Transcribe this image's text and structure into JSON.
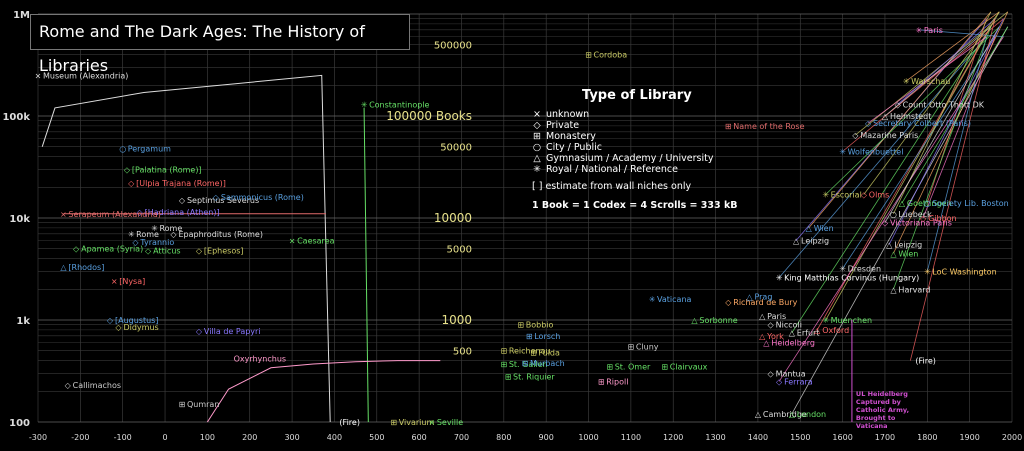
{
  "chart_data": {
    "type": "line",
    "title": "Rome and The Dark Ages: The History of Libraries",
    "xlim": [
      -300,
      2000
    ],
    "ylim": [
      100,
      1000000
    ],
    "yscale": "log",
    "grid": true,
    "x_ticks": [
      "-300",
      "-200",
      "-100",
      "0",
      "100",
      "200",
      "300",
      "400",
      "500",
      "600",
      "700",
      "800",
      "900",
      "1000",
      "1100",
      "1200",
      "1300",
      "1400",
      "1500",
      "1600",
      "1700",
      "1800",
      "1900",
      "2000"
    ],
    "y_ticks": [
      {
        "value": 100,
        "label": "100"
      },
      {
        "value": 1000,
        "label": "1k"
      },
      {
        "value": 10000,
        "label": "10k"
      },
      {
        "value": 100000,
        "label": "100k"
      },
      {
        "value": 1000000,
        "label": "1M"
      }
    ],
    "inner_labels": [
      {
        "value": 500000,
        "label": "500000"
      },
      {
        "value": 100000,
        "label": "100000 Books"
      },
      {
        "value": 50000,
        "label": "50000"
      },
      {
        "value": 10000,
        "label": "10000"
      },
      {
        "value": 5000,
        "label": "5000"
      },
      {
        "value": 1000,
        "label": "1000"
      },
      {
        "value": 500,
        "label": "500"
      }
    ],
    "legend": {
      "title": "Type of Library",
      "items": [
        {
          "symbol": "×",
          "label": "unknown"
        },
        {
          "symbol": "◇",
          "label": "Private"
        },
        {
          "symbol": "⊞",
          "label": "Monastery"
        },
        {
          "symbol": "○",
          "label": "City / Public"
        },
        {
          "symbol": "△",
          "label": "Gymnasium / Academy / University"
        },
        {
          "symbol": "✳",
          "label": "Royal / National / Reference"
        }
      ],
      "note": "[ ] estimate from wall niches only",
      "scale": "1 Book = 1 Codex = 4 Scrolls = 333 kB"
    },
    "series": [
      {
        "name": "Museum (Alexandria)",
        "color": "#dddddd",
        "points": [
          [
            -290,
            50000
          ],
          [
            -260,
            120000
          ],
          [
            -50,
            170000
          ],
          [
            370,
            250000
          ],
          [
            390,
            100
          ]
        ]
      },
      {
        "name": "Serapeum (Alexandria)",
        "color": "#e06b6b",
        "points": [
          [
            -240,
            11000
          ],
          [
            380,
            11000
          ]
        ]
      },
      {
        "name": "Constantinople",
        "color": "#66e066",
        "points": [
          [
            470,
            120000
          ],
          [
            480,
            100
          ]
        ]
      },
      {
        "name": "Oxyrhynchus",
        "color": "#ff9acb",
        "points": [
          [
            100,
            100
          ],
          [
            150,
            210
          ],
          [
            250,
            340
          ],
          [
            350,
            370
          ],
          [
            450,
            390
          ],
          [
            550,
            400
          ],
          [
            650,
            400
          ]
        ]
      }
    ],
    "annotations": [
      {
        "label": "Museum (Alexandria)",
        "x": -300,
        "y": 250000,
        "color": "#dddddd",
        "marker": "×"
      },
      {
        "label": "Constantinople",
        "x": 470,
        "y": 130000,
        "color": "#66e066",
        "marker": "✳"
      },
      {
        "label": "Cordoba",
        "x": 1000,
        "y": 400000,
        "color": "#cccc66",
        "marker": "⊞"
      },
      {
        "label": "Pergamum",
        "x": -100,
        "y": 48000,
        "color": "#5aa0e0",
        "marker": "○"
      },
      {
        "label": "[Palatina (Rome)]",
        "x": -90,
        "y": 30000,
        "color": "#66e066",
        "marker": "◇"
      },
      {
        "label": "[Ulpia Trajana (Rome)]",
        "x": -80,
        "y": 22000,
        "color": "#ff6666",
        "marker": "◇"
      },
      {
        "label": "Septimus Severus",
        "x": 40,
        "y": 15000,
        "color": "#dddddd",
        "marker": "◇"
      },
      {
        "label": "Sammonicus (Rome)",
        "x": 120,
        "y": 16000,
        "color": "#5aa0e0",
        "marker": "◇"
      },
      {
        "label": "[Hadriana (Athen)]",
        "x": -60,
        "y": 11500,
        "color": "#8a78ff",
        "marker": "◇"
      },
      {
        "label": "Serapeum (Alexandria)",
        "x": -240,
        "y": 11000,
        "color": "#e06b6b",
        "marker": "×"
      },
      {
        "label": "Rome",
        "x": -25,
        "y": 8000,
        "color": "#dddddd",
        "marker": "✳"
      },
      {
        "label": "Rome",
        "x": -80,
        "y": 7000,
        "color": "#dddddd",
        "marker": "✳"
      },
      {
        "label": "Epaphroditus (Rome)",
        "x": 20,
        "y": 7000,
        "color": "#dddddd",
        "marker": "◇"
      },
      {
        "label": "Tyrannio",
        "x": -70,
        "y": 5800,
        "color": "#5aa0e0",
        "marker": "◇"
      },
      {
        "label": "Caesarea",
        "x": 300,
        "y": 6000,
        "color": "#66e066",
        "marker": "×"
      },
      {
        "label": "Apamea (Syria)",
        "x": -210,
        "y": 5000,
        "color": "#66e066",
        "marker": "◇"
      },
      {
        "label": "Atticus",
        "x": -40,
        "y": 4800,
        "color": "#66e066",
        "marker": "◇"
      },
      {
        "label": "[Ephesos]",
        "x": 80,
        "y": 4800,
        "color": "#cccc66",
        "marker": "◇"
      },
      {
        "label": "[Rhodos]",
        "x": -240,
        "y": 3300,
        "color": "#5aa0e0",
        "marker": "△"
      },
      {
        "label": "[Nysa]",
        "x": -120,
        "y": 2400,
        "color": "#ff6666",
        "marker": "×"
      },
      {
        "label": "[Augustus]",
        "x": -130,
        "y": 1000,
        "color": "#5aa0e0",
        "marker": "◇"
      },
      {
        "label": "Didymus",
        "x": -110,
        "y": 850,
        "color": "#cccc66",
        "marker": "◇"
      },
      {
        "label": "Villa de Papyri",
        "x": 80,
        "y": 780,
        "color": "#8a78ff",
        "marker": "◇"
      },
      {
        "label": "Callimachos",
        "x": -230,
        "y": 230,
        "color": "#cccccc",
        "marker": "◇"
      },
      {
        "label": "Qumran",
        "x": 40,
        "y": 150,
        "color": "#cccccc",
        "marker": "⊞"
      },
      {
        "label": "Oxyrhynchus",
        "x": 150,
        "y": 420,
        "color": "#ff9acb",
        "marker": ""
      },
      {
        "label": "(Fire)",
        "x": 400,
        "y": 100,
        "color": "#ffffff",
        "marker": ""
      },
      {
        "label": "Vivarium",
        "x": 540,
        "y": 100,
        "color": "#cccc66",
        "marker": "⊞"
      },
      {
        "label": "Seville",
        "x": 630,
        "y": 100,
        "color": "#66e066",
        "marker": "×"
      },
      {
        "label": "Bobbio",
        "x": 840,
        "y": 900,
        "color": "#cccc66",
        "marker": "⊞"
      },
      {
        "label": "Lorsch",
        "x": 860,
        "y": 700,
        "color": "#5aa0e0",
        "marker": "⊞"
      },
      {
        "label": "Reichenau",
        "x": 800,
        "y": 500,
        "color": "#cccc66",
        "marker": "⊞"
      },
      {
        "label": "Fulda",
        "x": 870,
        "y": 480,
        "color": "#cccc66",
        "marker": "⊞"
      },
      {
        "label": "St. Gallen",
        "x": 800,
        "y": 370,
        "color": "#66e066",
        "marker": "⊞"
      },
      {
        "label": "Murbach",
        "x": 850,
        "y": 380,
        "color": "#5aa0e0",
        "marker": "⊞"
      },
      {
        "label": "St. Riquier",
        "x": 810,
        "y": 280,
        "color": "#66e066",
        "marker": "⊞"
      },
      {
        "label": "St. Omer",
        "x": 1050,
        "y": 350,
        "color": "#66e066",
        "marker": "⊞"
      },
      {
        "label": "Ripoll",
        "x": 1030,
        "y": 250,
        "color": "#ff9acb",
        "marker": "⊞"
      },
      {
        "label": "Cluny",
        "x": 1100,
        "y": 550,
        "color": "#cccccc",
        "marker": "⊞"
      },
      {
        "label": "Clairvaux",
        "x": 1180,
        "y": 350,
        "color": "#66e066",
        "marker": "⊞"
      },
      {
        "label": "Vaticana",
        "x": 1150,
        "y": 1600,
        "color": "#5aa0e0",
        "marker": "✳"
      },
      {
        "label": "Sorbonne",
        "x": 1250,
        "y": 1000,
        "color": "#66e066",
        "marker": "△"
      },
      {
        "label": "Richard de Bury",
        "x": 1330,
        "y": 1500,
        "color": "#ffaa66",
        "marker": "◇"
      },
      {
        "label": "Prag",
        "x": 1380,
        "y": 1700,
        "color": "#5aa0e0",
        "marker": "△"
      },
      {
        "label": "King Matthias Corvinus (Hungary)",
        "x": 1450,
        "y": 2600,
        "color": "#ffffff",
        "marker": "✳"
      },
      {
        "label": "Name of the Rose",
        "x": 1330,
        "y": 80000,
        "color": "#e06b6b",
        "marker": "⊞"
      },
      {
        "label": "Paris",
        "x": 1410,
        "y": 1100,
        "color": "#dddddd",
        "marker": "△"
      },
      {
        "label": "Niccoli",
        "x": 1430,
        "y": 900,
        "color": "#dddddd",
        "marker": "◇"
      },
      {
        "label": "York",
        "x": 1410,
        "y": 700,
        "color": "#ff6666",
        "marker": "△"
      },
      {
        "label": "Heidelberg",
        "x": 1420,
        "y": 600,
        "color": "#ff77cc",
        "marker": "△"
      },
      {
        "label": "Erfurt",
        "x": 1480,
        "y": 750,
        "color": "#dddddd",
        "marker": "△"
      },
      {
        "label": "Oxford",
        "x": 1540,
        "y": 800,
        "color": "#ff6666",
        "marker": "△"
      },
      {
        "label": "Muenchen",
        "x": 1560,
        "y": 1000,
        "color": "#66e066",
        "marker": "✳"
      },
      {
        "label": "Mantua",
        "x": 1430,
        "y": 300,
        "color": "#dddddd",
        "marker": "◇"
      },
      {
        "label": "Ferrara",
        "x": 1450,
        "y": 250,
        "color": "#8a78ff",
        "marker": "◇"
      },
      {
        "label": "Cambridge",
        "x": 1400,
        "y": 120,
        "color": "#dddddd",
        "marker": "△"
      },
      {
        "label": "London",
        "x": 1480,
        "y": 120,
        "color": "#66e066",
        "marker": "△"
      },
      {
        "label": "Leipzig",
        "x": 1490,
        "y": 6000,
        "color": "#dddddd",
        "marker": "△"
      },
      {
        "label": "Wien",
        "x": 1520,
        "y": 8000,
        "color": "#5aa0e0",
        "marker": "△"
      },
      {
        "label": "Dresden",
        "x": 1600,
        "y": 3200,
        "color": "#dddddd",
        "marker": "✳"
      },
      {
        "label": "Escorial",
        "x": 1560,
        "y": 17000,
        "color": "#cccc66",
        "marker": "✳"
      },
      {
        "label": "Wolfenbuettel",
        "x": 1600,
        "y": 45000,
        "color": "#5aa0e0",
        "marker": "✳"
      },
      {
        "label": "Mazarine Paris",
        "x": 1630,
        "y": 65000,
        "color": "#dddddd",
        "marker": "◇"
      },
      {
        "label": "Secretary Colbert (Paris)",
        "x": 1660,
        "y": 85000,
        "color": "#5aa0e0",
        "marker": "◇"
      },
      {
        "label": "Helmstedt",
        "x": 1700,
        "y": 100000,
        "color": "#dddddd",
        "marker": "△"
      },
      {
        "label": "Count Otto Thott DK",
        "x": 1730,
        "y": 130000,
        "color": "#dddddd",
        "marker": "◇"
      },
      {
        "label": "Warschau",
        "x": 1750,
        "y": 220000,
        "color": "#cccc66",
        "marker": "✳"
      },
      {
        "label": "Paris",
        "x": 1780,
        "y": 700000,
        "color": "#ff77cc",
        "marker": "✳"
      },
      {
        "label": "Goettingen",
        "x": 1740,
        "y": 14000,
        "color": "#66e066",
        "marker": "△"
      },
      {
        "label": "Society Lib. Boston",
        "x": 1800,
        "y": 14000,
        "color": "#5aa0e0",
        "marker": "○"
      },
      {
        "label": "Luebeck",
        "x": 1720,
        "y": 11000,
        "color": "#dddddd",
        "marker": "○"
      },
      {
        "label": "Gibbon",
        "x": 1790,
        "y": 10000,
        "color": "#ff6666",
        "marker": "◇"
      },
      {
        "label": "Victoriana Paris",
        "x": 1700,
        "y": 9000,
        "color": "#ff77cc",
        "marker": "◇"
      },
      {
        "label": "Leipzig",
        "x": 1710,
        "y": 5500,
        "color": "#dddddd",
        "marker": "△"
      },
      {
        "label": "Wien",
        "x": 1720,
        "y": 4500,
        "color": "#66e066",
        "marker": "△"
      },
      {
        "label": "LoC Washington",
        "x": 1800,
        "y": 3000,
        "color": "#ffcc66",
        "marker": "✳"
      },
      {
        "label": "Harvard",
        "x": 1720,
        "y": 2000,
        "color": "#dddddd",
        "marker": "△"
      },
      {
        "label": "(Fire)",
        "x": 1760,
        "y": 400,
        "color": "#ffffff",
        "marker": ""
      },
      {
        "label": "Olms",
        "x": 1650,
        "y": 17000,
        "color": "#ff6666",
        "marker": "◇"
      }
    ],
    "callout": {
      "text": "UL Heidelberg Captured by Catholic Army, Brought to Vaticana",
      "color": "#d050d0",
      "x": 1622
    }
  }
}
